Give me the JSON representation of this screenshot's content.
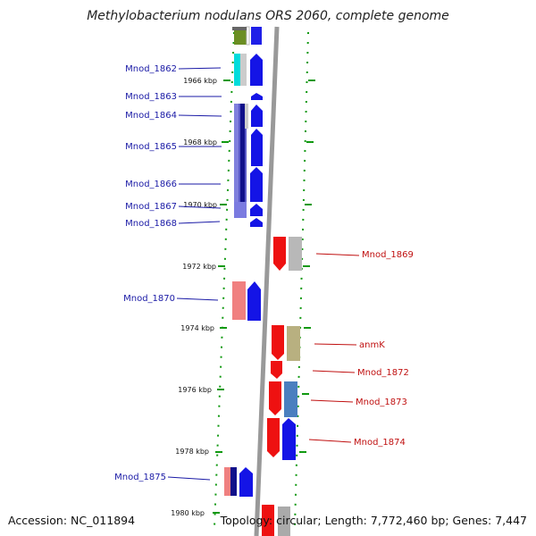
{
  "title": "Methylobacterium nodulans ORS 2060, complete genome",
  "footer": {
    "accession": "Accession: NC_011894",
    "topology": "Topology: circular; Length: 7,772,460 bp; Genes: 7,447"
  },
  "colors": {
    "left_label": "#1a1aa6",
    "right_label": "#c01010",
    "tick": "#119911",
    "genome_line": "#888888"
  },
  "ticks": [
    {
      "label": "1966 kbp"
    },
    {
      "label": "1968 kbp"
    },
    {
      "label": "1970 kbp"
    },
    {
      "label": "1972 kbp"
    },
    {
      "label": "1974 kbp"
    },
    {
      "label": "1976 kbp"
    },
    {
      "label": "1978 kbp"
    },
    {
      "label": "1980 kbp"
    }
  ],
  "left_genes": [
    {
      "name": "Mnod_1862"
    },
    {
      "name": "Mnod_1863"
    },
    {
      "name": "Mnod_1864"
    },
    {
      "name": "Mnod_1865"
    },
    {
      "name": "Mnod_1866"
    },
    {
      "name": "Mnod_1867"
    },
    {
      "name": "Mnod_1868"
    },
    {
      "name": "Mnod_1870"
    },
    {
      "name": "Mnod_1875"
    }
  ],
  "right_genes": [
    {
      "name": "Mnod_1869"
    },
    {
      "name": "anmK"
    },
    {
      "name": "Mnod_1872"
    },
    {
      "name": "Mnod_1873"
    },
    {
      "name": "Mnod_1874"
    }
  ]
}
